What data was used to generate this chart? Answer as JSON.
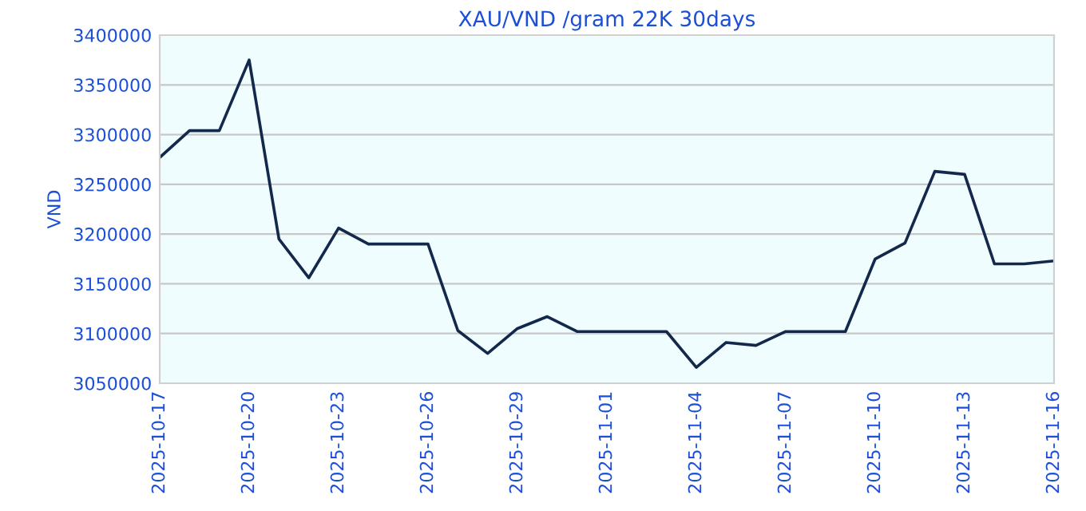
{
  "chart_data": {
    "type": "line",
    "title": "XAU/VND /gram 22K 30days",
    "ylabel": "VND",
    "x": [
      "2025-10-17",
      "2025-10-18",
      "2025-10-19",
      "2025-10-20",
      "2025-10-21",
      "2025-10-22",
      "2025-10-23",
      "2025-10-24",
      "2025-10-25",
      "2025-10-26",
      "2025-10-27",
      "2025-10-28",
      "2025-10-29",
      "2025-10-30",
      "2025-10-31",
      "2025-11-01",
      "2025-11-02",
      "2025-11-03",
      "2025-11-04",
      "2025-11-05",
      "2025-11-06",
      "2025-11-07",
      "2025-11-08",
      "2025-11-09",
      "2025-11-10",
      "2025-11-11",
      "2025-11-12",
      "2025-11-13",
      "2025-11-14",
      "2025-11-15",
      "2025-11-16"
    ],
    "series": [
      {
        "color": "#14284b",
        "values": [
          3277000,
          3304000,
          3304000,
          3375000,
          3195000,
          3156000,
          3206000,
          3190000,
          3190000,
          3190000,
          3103000,
          3080000,
          3105000,
          3117000,
          3102000,
          3102000,
          3102000,
          3102000,
          3066000,
          3091000,
          3088000,
          3102000,
          3102000,
          3102000,
          3175000,
          3191000,
          3263000,
          3260000,
          3170000,
          3170000,
          3173000
        ]
      }
    ],
    "xlim": [
      "2025-10-17",
      "2025-11-16"
    ],
    "xticks": [
      "2025-10-17",
      "2025-10-20",
      "2025-10-23",
      "2025-10-26",
      "2025-10-29",
      "2025-11-01",
      "2025-11-04",
      "2025-11-07",
      "2025-11-10",
      "2025-11-13",
      "2025-11-16"
    ],
    "ylim": [
      3050000,
      3400000
    ],
    "yticks": [
      3050000,
      3100000,
      3150000,
      3200000,
      3250000,
      3300000,
      3350000,
      3400000
    ],
    "grid": "y",
    "legend": false,
    "marker": "none",
    "line_style": "solid"
  }
}
